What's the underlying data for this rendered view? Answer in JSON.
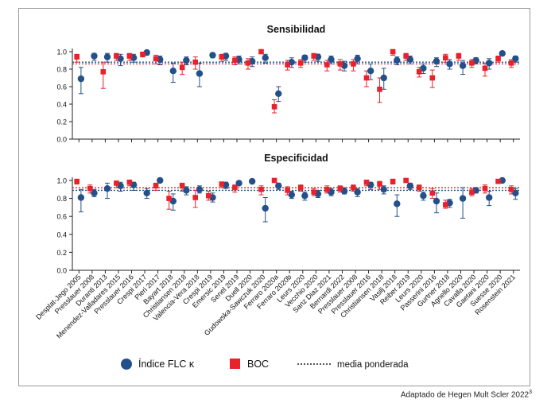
{
  "credit": "Adaptado de Hegen Mult Scler 2022",
  "credit_ref": "3",
  "colors": {
    "flc": "#23508a",
    "boc": "#e8212b",
    "flc_mean": "#23508a",
    "boc_mean": "#e8212b",
    "axis": "#222222"
  },
  "legend": [
    {
      "key": "flc",
      "label": "Índice FLC κ",
      "marker": "circle"
    },
    {
      "key": "boc",
      "label": "BOC",
      "marker": "square"
    },
    {
      "key": "mean",
      "label": "media ponderada",
      "marker": "dotted-line"
    }
  ],
  "chart_data": [
    {
      "type": "scatter",
      "title": "Sensibilidad",
      "ylim": [
        0,
        1
      ],
      "yticks": [
        "0.0",
        "0.2",
        "0.4",
        "0.6",
        "0.8",
        "1.0"
      ],
      "weighted_mean": {
        "flc": 0.88,
        "boc": 0.86
      },
      "categories": [
        "Desplat-Jego 2005",
        "Presslauer 2008",
        "Duranti 2013",
        "Menendez-Valladares 2015",
        "Presslauer 2016",
        "Crespi 2017",
        "Pieri 2017",
        "Bayart 2018",
        "Christiansen 2018",
        "Valencia-Vera 2018",
        "Crespi 2019",
        "Emersic 2019",
        "Senel 2019",
        "Duell 2020",
        "Gudowska-Sawczuk 2020",
        "Ferraro 2020a",
        "Ferraro 2020b",
        "Leurs 2020",
        "Vecchio 2020",
        "Sanz Diaz 2021",
        "Bernardi 2022",
        "Presslauer 2008",
        "Presslauer 2016",
        "Christiansen 2018",
        "Vasilj 2018",
        "Reiber 2019",
        "Leurs 2020",
        "Passerini 2016",
        "Gurtner 2018",
        "Agnello 2020",
        "Cavalla 2020",
        "Gaetani 2020",
        "Suesse 2020",
        "Rosenstein 2021"
      ],
      "series": [
        {
          "name": "Índice FLC κ",
          "key": "flc",
          "values": [
            0.69,
            0.95,
            0.94,
            0.92,
            0.93,
            0.99,
            0.91,
            0.78,
            0.9,
            0.75,
            0.96,
            0.95,
            0.91,
            0.89,
            0.93,
            0.52,
            0.88,
            0.93,
            0.94,
            0.91,
            0.84,
            0.92,
            0.78,
            0.7,
            0.9,
            0.91,
            0.81,
            0.89,
            0.86,
            0.84,
            0.9,
            0.87,
            0.98,
            0.92
          ],
          "ci_low": [
            0.52,
            0.9,
            0.88,
            0.84,
            0.88,
            0.96,
            0.85,
            0.65,
            0.85,
            0.6,
            0.93,
            0.9,
            0.86,
            0.83,
            0.87,
            0.43,
            0.82,
            0.88,
            0.89,
            0.86,
            0.78,
            0.86,
            0.68,
            0.57,
            0.85,
            0.86,
            0.75,
            0.83,
            0.8,
            0.74,
            0.86,
            0.8,
            0.96,
            0.88
          ],
          "ci_high": [
            0.82,
            0.98,
            0.98,
            0.97,
            0.97,
            1.0,
            0.95,
            0.87,
            0.94,
            0.87,
            0.98,
            0.98,
            0.95,
            0.94,
            0.97,
            0.6,
            0.93,
            0.96,
            0.97,
            0.95,
            0.89,
            0.96,
            0.86,
            0.81,
            0.94,
            0.95,
            0.86,
            0.93,
            0.91,
            0.9,
            0.93,
            0.92,
            0.99,
            0.95
          ]
        },
        {
          "name": "BOC",
          "key": "boc",
          "values": [
            0.94,
            null,
            0.77,
            0.95,
            0.95,
            0.97,
            0.92,
            null,
            0.82,
            0.88,
            null,
            0.94,
            0.9,
            0.87,
            1.0,
            0.37,
            0.85,
            0.87,
            0.95,
            0.85,
            0.86,
            0.86,
            0.7,
            0.57,
            1.0,
            0.95,
            0.77,
            0.7,
            0.93,
            0.95,
            0.87,
            0.81,
            0.92,
            0.87
          ],
          "ci_low": [
            0.88,
            null,
            0.58,
            0.9,
            0.9,
            0.94,
            0.86,
            null,
            0.74,
            0.8,
            null,
            0.89,
            0.85,
            0.8,
            0.98,
            0.3,
            0.79,
            0.82,
            0.9,
            0.78,
            0.79,
            0.78,
            0.6,
            0.42,
            0.96,
            0.9,
            0.71,
            0.59,
            0.88,
            0.9,
            0.82,
            0.72,
            0.88,
            0.82
          ],
          "ci_high": [
            0.97,
            null,
            0.88,
            0.98,
            0.98,
            0.99,
            0.96,
            null,
            0.88,
            0.94,
            null,
            0.97,
            0.94,
            0.92,
            1.0,
            0.45,
            0.9,
            0.91,
            0.98,
            0.9,
            0.91,
            0.91,
            0.78,
            0.7,
            1.0,
            0.98,
            0.82,
            0.79,
            0.97,
            0.98,
            0.91,
            0.87,
            0.95,
            0.91
          ]
        }
      ]
    },
    {
      "type": "scatter",
      "title": "Especificidad",
      "ylim": [
        0,
        1
      ],
      "yticks": [
        "0.0",
        "0.2",
        "0.4",
        "0.6",
        "0.8",
        "1.0"
      ],
      "weighted_mean": {
        "flc": 0.89,
        "boc": 0.92
      },
      "categories": [
        "Desplat-Jego 2005",
        "Presslauer 2008",
        "Duranti 2013",
        "Menendez-Valladares 2015",
        "Presslauer 2016",
        "Crespi 2017",
        "Pieri 2017",
        "Bayart 2018",
        "Christiansen 2018",
        "Valencia-Vera 2018",
        "Crespi 2019",
        "Emersic 2019",
        "Senel 2019",
        "Duell 2020",
        "Gudowska-Sawczuk 2020",
        "Ferraro 2020a",
        "Ferraro 2020b",
        "Leurs 2020",
        "Vecchio 2020",
        "Sanz Diaz 2021",
        "Bernardi 2022",
        "Presslauer 2008",
        "Presslauer 2016",
        "Christiansen 2018",
        "Vasilj 2018",
        "Reiber 2019",
        "Leurs 2020",
        "Passerini 2016",
        "Gurtner 2018",
        "Agnello 2020",
        "Cavalla 2020",
        "Gaetani 2020",
        "Suesse 2020",
        "Rosenstein 2021"
      ],
      "series": [
        {
          "name": "Índice FLC κ",
          "key": "flc",
          "values": [
            0.81,
            0.86,
            0.91,
            0.94,
            0.95,
            0.86,
            1.0,
            0.77,
            0.89,
            0.9,
            0.81,
            0.95,
            0.97,
            0.99,
            0.69,
            0.94,
            0.84,
            0.83,
            0.85,
            0.87,
            0.88,
            0.87,
            0.95,
            0.9,
            0.74,
            0.94,
            0.83,
            0.77,
            0.75,
            0.8,
            0.89,
            0.81,
            1.0,
            0.86
          ],
          "ci_low": [
            0.65,
            0.82,
            0.8,
            0.88,
            0.89,
            0.8,
            0.98,
            0.67,
            0.84,
            0.86,
            0.76,
            0.91,
            0.95,
            0.97,
            0.54,
            0.9,
            0.8,
            0.78,
            0.81,
            0.83,
            0.85,
            0.82,
            0.9,
            0.85,
            0.6,
            0.9,
            0.78,
            0.64,
            0.7,
            0.58,
            0.86,
            0.72,
            0.99,
            0.79
          ],
          "ci_high": [
            0.9,
            0.9,
            0.97,
            0.98,
            0.98,
            0.91,
            1.0,
            0.85,
            0.93,
            0.94,
            0.86,
            0.98,
            0.99,
            1.0,
            0.81,
            0.97,
            0.88,
            0.87,
            0.89,
            0.91,
            0.92,
            0.91,
            0.98,
            0.94,
            0.84,
            0.97,
            0.87,
            0.86,
            0.79,
            0.92,
            0.92,
            0.88,
            1.0,
            0.91
          ]
        },
        {
          "name": "BOC",
          "key": "boc",
          "values": [
            0.99,
            0.91,
            null,
            0.97,
            0.98,
            null,
            0.94,
            0.8,
            0.94,
            0.81,
            0.83,
            0.96,
            0.92,
            null,
            0.9,
            1.0,
            0.89,
            0.92,
            0.87,
            0.9,
            0.91,
            0.92,
            0.98,
            0.96,
            0.99,
            1.0,
            0.92,
            0.86,
            0.73,
            null,
            0.87,
            0.91,
            0.99,
            0.9
          ],
          "ci_low": [
            0.96,
            0.86,
            null,
            0.92,
            0.94,
            null,
            0.89,
            0.68,
            0.88,
            0.7,
            0.78,
            0.92,
            0.87,
            null,
            0.84,
            0.98,
            0.84,
            0.88,
            0.83,
            0.86,
            0.87,
            0.88,
            0.94,
            0.9,
            0.96,
            0.98,
            0.88,
            0.8,
            0.69,
            null,
            0.83,
            0.86,
            0.97,
            0.85
          ],
          "ci_high": [
            1.0,
            0.95,
            null,
            0.99,
            1.0,
            null,
            0.97,
            0.88,
            0.97,
            0.89,
            0.88,
            0.98,
            0.95,
            null,
            0.94,
            1.0,
            0.93,
            0.95,
            0.91,
            0.94,
            0.94,
            0.95,
            1.0,
            0.99,
            1.0,
            1.0,
            0.95,
            0.91,
            0.78,
            null,
            0.91,
            0.95,
            1.0,
            0.94
          ]
        }
      ]
    }
  ]
}
